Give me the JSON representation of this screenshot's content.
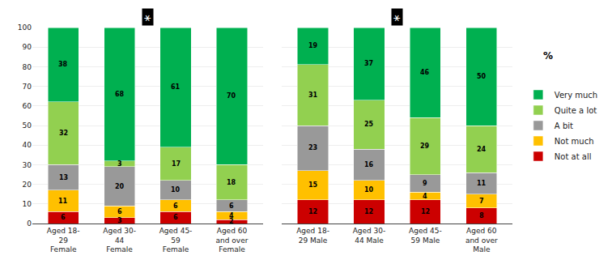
{
  "chart_data": [
    {
      "type": "bar",
      "stacked": true,
      "data_labels": true,
      "grid": true,
      "legend": "right",
      "categories": [
        "Aged 18-\n29\nFemale",
        "Aged 30-\n44\nFemale",
        "Aged 45-\n59\nFemale",
        "Aged 60\nand over\nFemale"
      ],
      "series": [
        {
          "name": "Not at all",
          "color": "#cc0000",
          "values": [
            6,
            3,
            6,
            2
          ]
        },
        {
          "name": "Not much",
          "color": "#ffc000",
          "values": [
            11,
            6,
            6,
            4
          ]
        },
        {
          "name": "A bit",
          "color": "#999999",
          "values": [
            13,
            20,
            10,
            6
          ]
        },
        {
          "name": "Quite a lot",
          "color": "#92d050",
          "values": [
            32,
            3,
            17,
            18
          ]
        },
        {
          "name": "Very much",
          "color": "#00b050",
          "values": [
            38,
            68,
            61,
            70
          ]
        }
      ],
      "ylim": [
        0,
        100
      ],
      "yticks": [
        0,
        10,
        20,
        30,
        40,
        50,
        60,
        70,
        80,
        90,
        100
      ],
      "annotations": [
        "⚹",
        "%"
      ]
    },
    {
      "type": "bar",
      "stacked": true,
      "data_labels": true,
      "grid": true,
      "tick_labels": "x",
      "categories": [
        "Aged 18-\n29 Male",
        "Aged 30-\n44 Male",
        "Aged 45-\n59 Male",
        "Aged 60\nand over\nMale"
      ],
      "series": [
        {
          "name": "Not at all",
          "color": "#cc0000",
          "values": [
            12,
            12,
            12,
            8
          ]
        },
        {
          "name": "Not much",
          "color": "#ffc000",
          "values": [
            15,
            10,
            4,
            7
          ]
        },
        {
          "name": "A bit",
          "color": "#999999",
          "values": [
            23,
            16,
            9,
            11
          ]
        },
        {
          "name": "Quite a lot",
          "color": "#92d050",
          "values": [
            31,
            25,
            29,
            24
          ]
        },
        {
          "name": "Very much",
          "color": "#00b050",
          "values": [
            19,
            37,
            46,
            50
          ]
        }
      ],
      "ylim": [
        0,
        100
      ],
      "yticks": [
        0,
        10,
        20,
        30,
        40,
        50,
        60,
        70,
        80,
        90,
        100
      ],
      "annotations": [
        "⚹"
      ]
    }
  ]
}
